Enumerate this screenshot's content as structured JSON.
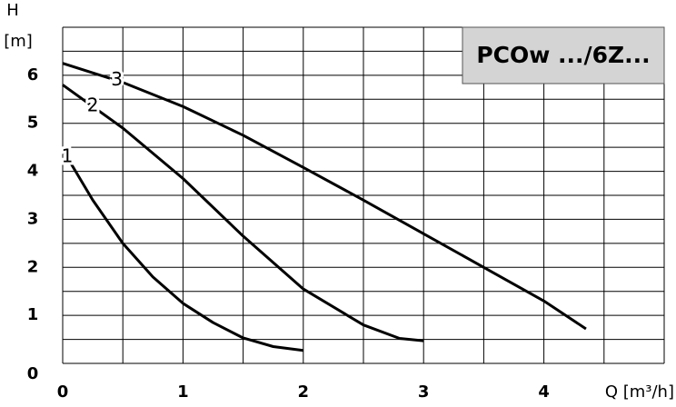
{
  "chart_data": {
    "type": "line",
    "title": "PCOw .../6Z...",
    "y_label": "H",
    "y_unit": "[m]",
    "x_label": "Q [m³/h]",
    "xlim": [
      0,
      5
    ],
    "ylim": [
      0,
      7
    ],
    "xticks": [
      0,
      1,
      2,
      3,
      4
    ],
    "yticks": [
      0,
      1,
      2,
      3,
      4,
      5,
      6
    ],
    "xgrid": [
      0,
      0.5,
      1,
      1.5,
      2,
      2.5,
      3,
      3.5,
      4,
      4.5,
      5
    ],
    "ygrid": [
      0,
      0.5,
      1,
      1.5,
      2,
      2.5,
      3,
      3.5,
      4,
      4.5,
      5,
      5.5,
      6,
      6.5,
      7
    ],
    "grid": true,
    "series": [
      {
        "name": "1",
        "color": "#000000",
        "x": [
          0,
          0.25,
          0.5,
          0.75,
          1,
          1.25,
          1.5,
          1.75,
          2.0
        ],
        "values": [
          4.45,
          3.4,
          2.5,
          1.8,
          1.25,
          0.85,
          0.53,
          0.35,
          0.27
        ]
      },
      {
        "name": "2",
        "color": "#000000",
        "x": [
          0,
          0.5,
          1,
          1.5,
          2,
          2.5,
          2.8,
          3.0
        ],
        "values": [
          5.8,
          4.9,
          3.85,
          2.65,
          1.55,
          0.8,
          0.52,
          0.47
        ]
      },
      {
        "name": "3",
        "color": "#000000",
        "x": [
          0,
          0.5,
          1,
          1.5,
          2,
          2.5,
          3,
          3.5,
          4,
          4.35
        ],
        "values": [
          6.25,
          5.85,
          5.35,
          4.75,
          4.08,
          3.4,
          2.7,
          2.0,
          1.3,
          0.72
        ]
      }
    ]
  }
}
